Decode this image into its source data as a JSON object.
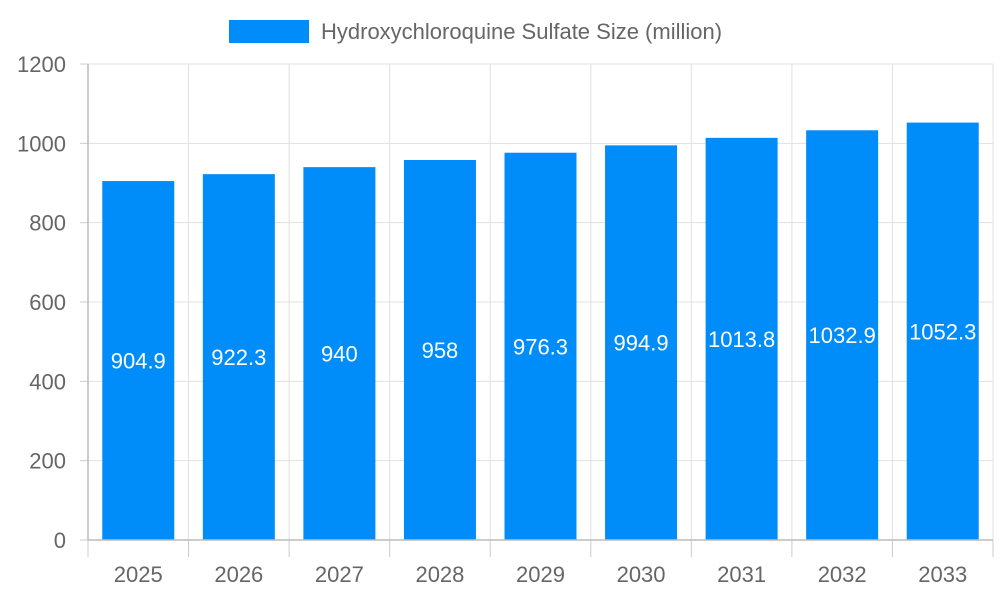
{
  "chart_data": {
    "type": "bar",
    "categories": [
      "2025",
      "2026",
      "2027",
      "2028",
      "2029",
      "2030",
      "2031",
      "2032",
      "2033"
    ],
    "series": [
      {
        "name": "Hydroxychloroquine Sulfate Size (million)",
        "values": [
          904.9,
          922.3,
          940,
          958,
          976.3,
          994.9,
          1013.8,
          1032.9,
          1052.3
        ],
        "labels": [
          "904.9",
          "922.3",
          "940",
          "958",
          "976.3",
          "994.9",
          "1013.8",
          "1032.9",
          "1052.3"
        ],
        "color": "#008cf9"
      }
    ],
    "ylim": [
      0,
      1200
    ],
    "yticks": [
      "0",
      "200",
      "400",
      "600",
      "800",
      "1000",
      "1200"
    ],
    "grid": true,
    "legend": "top-center",
    "title": "",
    "xlabel": "",
    "ylabel": ""
  }
}
